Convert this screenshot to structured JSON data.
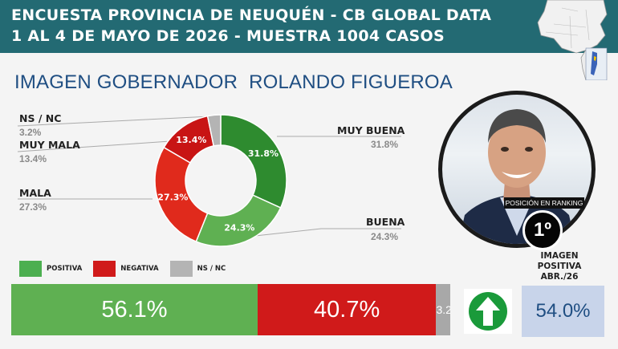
{
  "header": {
    "line1": "ENCUESTA PROVINCIA DE NEUQUÉN - CB GLOBAL DATA",
    "line2": "1 AL 4 DE MAYO DE 2026 - MUESTRA 1004 CASOS"
  },
  "title": {
    "part1": "IMAGEN GOBERNADOR",
    "part2": "ROLANDO FIGUEROA"
  },
  "colors": {
    "header": "#236a73",
    "positive_dark": "#2e8b2f",
    "positive_light": "#5fb052",
    "negative_dark": "#c81414",
    "negative_light": "#e02a1c",
    "nsnc": "#b4b4b4",
    "rank_box": "#c8d4ea"
  },
  "chart_data": {
    "type": "pie",
    "donut": true,
    "slices": [
      {
        "label": "MUY BUENA",
        "value": 31.8,
        "display": "31.8%",
        "side_value": "31.8%",
        "color": "#2e8b2f"
      },
      {
        "label": "BUENA",
        "value": 24.3,
        "display": "24.3%",
        "side_value": "24.3%",
        "color": "#5fb052"
      },
      {
        "label": "MALA",
        "value": 27.3,
        "display": "27.3%",
        "side_value": "27.3%",
        "color": "#e02a1c"
      },
      {
        "label": "MUY MALA",
        "value": 13.4,
        "display": "13.4%",
        "side_value": "13.4%",
        "color": "#c81414"
      },
      {
        "label": "NS / NC",
        "value": 3.2,
        "display": "",
        "side_value": "3.2%",
        "color": "#b4b4b4"
      }
    ],
    "legend": [
      {
        "label": "POSITIVA",
        "color": "#4caf50"
      },
      {
        "label": "NEGATIVA",
        "color": "#d01a1a"
      },
      {
        "label": "NS / NC",
        "color": "#b4b4b4"
      }
    ],
    "summary_bar": {
      "type": "bar",
      "stacked": true,
      "segments": [
        {
          "label": "POSITIVA",
          "value": 56.1,
          "display": "56.1%",
          "color": "#5fb052"
        },
        {
          "label": "NEGATIVA",
          "value": 40.7,
          "display": "40.7%",
          "color": "#d01a1a"
        },
        {
          "label": "NS / NC",
          "value": 3.2,
          "display": "3.2",
          "color": "#a8a8a8"
        }
      ]
    }
  },
  "ranking": {
    "badge_label": "POSICIÓN EN RANKING",
    "position": "1º",
    "caption_1": "IMAGEN",
    "caption_2": "POSITIVA",
    "caption_3": "ABR./26",
    "value": "54.0%",
    "trend": "up-arrow-icon"
  }
}
